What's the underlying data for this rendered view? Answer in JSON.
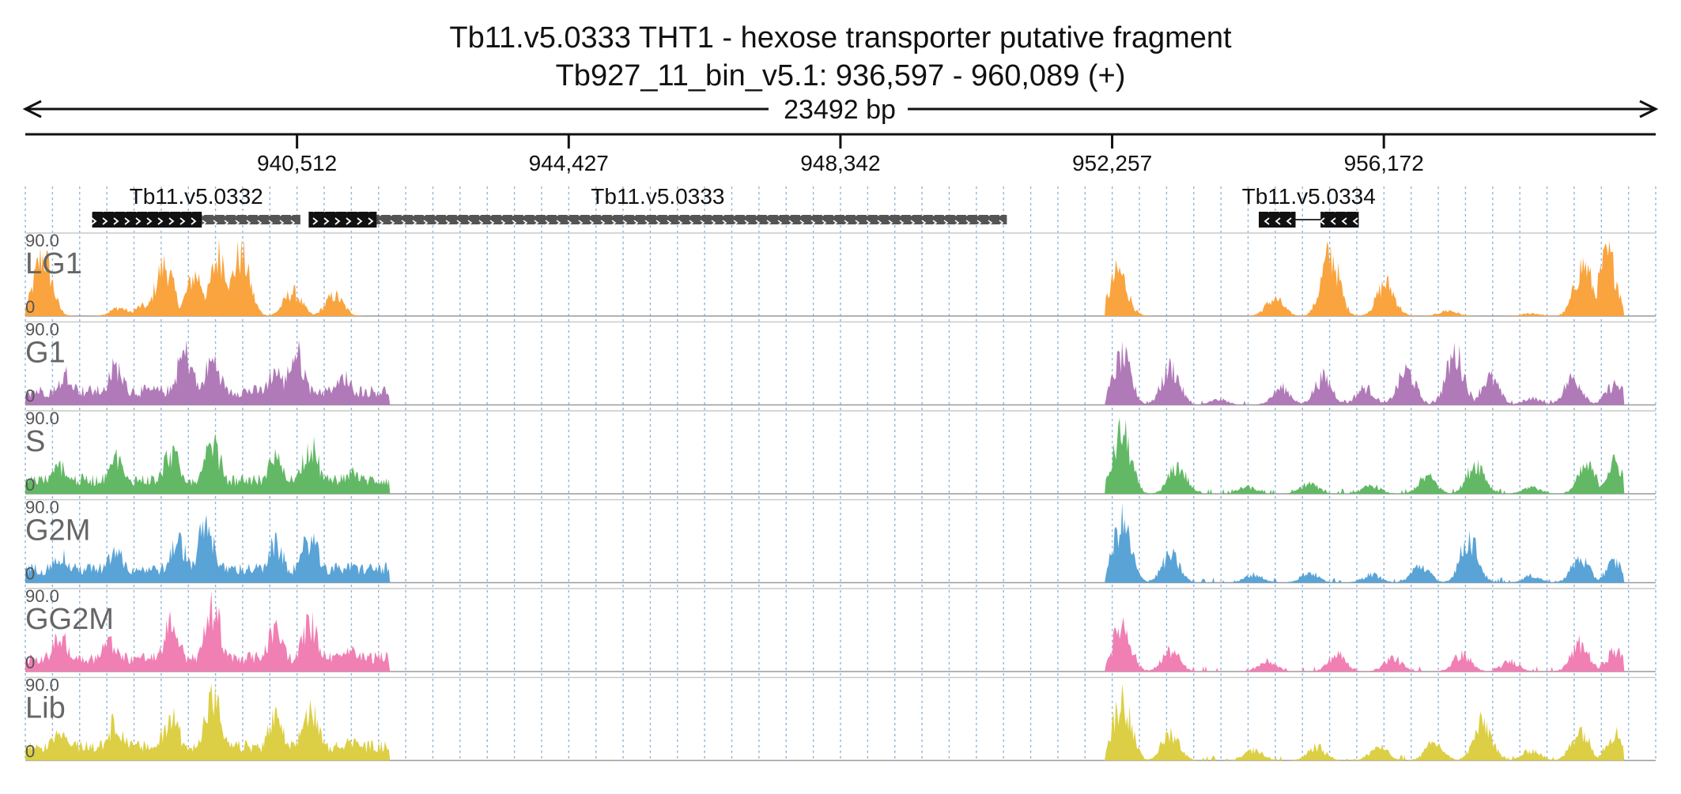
{
  "title": {
    "line1": "Tb11.v5.0333  THT1 - hexose transporter  putative  fragment",
    "line2": "Tb927_11_bin_v5.1: 936,597 - 960,089 (+)"
  },
  "scale": {
    "length_label": "23492 bp",
    "start": 936597,
    "end": 960089,
    "ticks": [
      {
        "label": "940,512",
        "value": 940512
      },
      {
        "label": "944,427",
        "value": 944427
      },
      {
        "label": "948,342",
        "value": 948342
      },
      {
        "label": "952,257",
        "value": 952257
      },
      {
        "label": "956,172",
        "value": 956172
      }
    ]
  },
  "genes": [
    {
      "name": "Tb11.v5.0332",
      "strand": "+",
      "start": 937560,
      "end": 940560,
      "exons": [
        [
          937560,
          939140
        ]
      ],
      "utrs": [
        [
          939140,
          940560
        ]
      ]
    },
    {
      "name": "Tb11.v5.0333",
      "strand": "+",
      "start": 940680,
      "end": 950740,
      "exons": [
        [
          940680,
          941660
        ]
      ],
      "utrs": [
        [
          941660,
          950740
        ]
      ]
    },
    {
      "name": "Tb11.v5.0334",
      "strand": "-",
      "start": 954370,
      "end": 955810,
      "exons": [
        [
          954370,
          954900
        ],
        [
          955260,
          955810
        ]
      ],
      "utrs": []
    }
  ],
  "tracks": [
    {
      "name": "LG1",
      "max_label": "90.0",
      "min_label": "0",
      "color": "#f9a43f"
    },
    {
      "name": "G1",
      "max_label": "90.0",
      "min_label": "0",
      "color": "#b07ab8"
    },
    {
      "name": "S",
      "max_label": "90.0",
      "min_label": "0",
      "color": "#63b865"
    },
    {
      "name": "G2M",
      "max_label": "90.0",
      "min_label": "0",
      "color": "#5aa3d6"
    },
    {
      "name": "GG2M",
      "max_label": "90.0",
      "min_label": "0",
      "color": "#f07fb4"
    },
    {
      "name": "Lib",
      "max_label": "90.0",
      "min_label": "0",
      "color": "#dccf45"
    }
  ],
  "chart_data": {
    "type": "area",
    "x_unit": "bp",
    "xlim": [
      936597,
      960089
    ],
    "ylim": [
      0,
      90
    ],
    "signal_regions_bp": [
      [
        936597,
        941850
      ],
      [
        952160,
        959630
      ]
    ],
    "series": [
      {
        "name": "LG1",
        "peaks": [
          [
            936850,
            88
          ],
          [
            937950,
            12
          ],
          [
            938300,
            15
          ],
          [
            938600,
            75
          ],
          [
            939050,
            60
          ],
          [
            939400,
            90
          ],
          [
            939700,
            90
          ],
          [
            940450,
            35
          ],
          [
            941050,
            30
          ],
          [
            952350,
            65
          ],
          [
            954600,
            25
          ],
          [
            955400,
            90
          ],
          [
            956200,
            48
          ],
          [
            957100,
            8
          ],
          [
            958300,
            4
          ],
          [
            959050,
            75
          ],
          [
            959400,
            88
          ]
        ]
      },
      {
        "name": "G1",
        "peaks": [
          [
            937200,
            45
          ],
          [
            937900,
            55
          ],
          [
            938900,
            75
          ],
          [
            939300,
            65
          ],
          [
            940200,
            50
          ],
          [
            940500,
            75
          ],
          [
            941200,
            40
          ],
          [
            952400,
            70
          ],
          [
            953100,
            55
          ],
          [
            953800,
            8
          ],
          [
            954700,
            25
          ],
          [
            955300,
            40
          ],
          [
            955900,
            25
          ],
          [
            956500,
            50
          ],
          [
            957200,
            75
          ],
          [
            957700,
            40
          ],
          [
            958300,
            10
          ],
          [
            958900,
            40
          ],
          [
            959500,
            30
          ]
        ]
      },
      {
        "name": "S",
        "peaks": [
          [
            937100,
            40
          ],
          [
            937900,
            50
          ],
          [
            938700,
            60
          ],
          [
            939300,
            70
          ],
          [
            940200,
            50
          ],
          [
            940700,
            70
          ],
          [
            941300,
            30
          ],
          [
            952400,
            90
          ],
          [
            953200,
            40
          ],
          [
            954200,
            10
          ],
          [
            955100,
            15
          ],
          [
            956000,
            12
          ],
          [
            956800,
            25
          ],
          [
            957500,
            45
          ],
          [
            958300,
            10
          ],
          [
            959100,
            40
          ],
          [
            959500,
            45
          ]
        ]
      },
      {
        "name": "G2M",
        "peaks": [
          [
            937100,
            40
          ],
          [
            937900,
            45
          ],
          [
            938800,
            60
          ],
          [
            939200,
            80
          ],
          [
            940200,
            55
          ],
          [
            940700,
            65
          ],
          [
            941300,
            25
          ],
          [
            952400,
            88
          ],
          [
            953100,
            40
          ],
          [
            954300,
            12
          ],
          [
            955100,
            15
          ],
          [
            956000,
            12
          ],
          [
            956700,
            25
          ],
          [
            957400,
            65
          ],
          [
            958300,
            10
          ],
          [
            959000,
            35
          ],
          [
            959500,
            30
          ]
        ]
      },
      {
        "name": "GG2M",
        "peaks": [
          [
            937100,
            50
          ],
          [
            937800,
            45
          ],
          [
            938700,
            70
          ],
          [
            939300,
            90
          ],
          [
            940200,
            60
          ],
          [
            940700,
            70
          ],
          [
            941300,
            35
          ],
          [
            952400,
            70
          ],
          [
            953100,
            30
          ],
          [
            954500,
            15
          ],
          [
            955500,
            25
          ],
          [
            956300,
            20
          ],
          [
            957300,
            25
          ],
          [
            958000,
            15
          ],
          [
            959000,
            40
          ],
          [
            959500,
            30
          ]
        ]
      },
      {
        "name": "Lib",
        "peaks": [
          [
            937100,
            45
          ],
          [
            937900,
            55
          ],
          [
            938700,
            65
          ],
          [
            939300,
            90
          ],
          [
            940200,
            60
          ],
          [
            940700,
            75
          ],
          [
            941300,
            30
          ],
          [
            952400,
            90
          ],
          [
            953100,
            40
          ],
          [
            954300,
            15
          ],
          [
            955200,
            20
          ],
          [
            956100,
            20
          ],
          [
            956900,
            25
          ],
          [
            957600,
            55
          ],
          [
            958300,
            15
          ],
          [
            959000,
            45
          ],
          [
            959500,
            40
          ]
        ]
      }
    ]
  }
}
